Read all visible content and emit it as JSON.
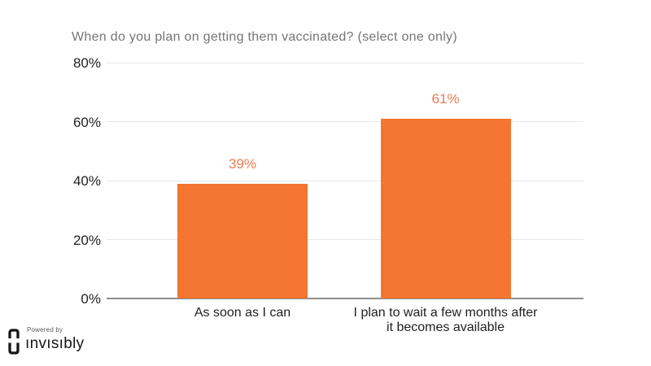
{
  "chart_data": {
    "type": "bar",
    "title": "When do you plan on getting them vaccinated? (select one only)",
    "categories": [
      "As soon as I can",
      "I plan to wait a few months after\nit becomes available"
    ],
    "values": [
      39,
      61
    ],
    "value_labels": [
      "39%",
      "61%"
    ],
    "ytick_labels": [
      "0%",
      "20%",
      "40%",
      "60%",
      "80%"
    ],
    "ytick_values": [
      0,
      20,
      40,
      60,
      80
    ],
    "ylim": [
      0,
      80
    ],
    "grid": true,
    "legend": "none"
  },
  "colors": {
    "bar": "#f4752f",
    "data_label": "#ed7c50",
    "title": "#757575",
    "gridline": "#e6e6e6",
    "axis_line": "#8f8f8f"
  },
  "branding": {
    "powered_by": "Powered by",
    "brand": "ınvısıbly"
  }
}
